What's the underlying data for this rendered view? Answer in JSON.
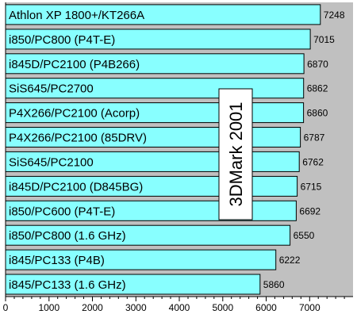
{
  "chart_data": {
    "type": "bar",
    "orientation": "horizontal",
    "categories": [
      "Athlon XP 1800+/KT266A",
      "i850/PC800 (P4T-E)",
      "i845D/PC2100 (P4B266)",
      "SiS645/PC2700",
      "P4X266/PC2100 (Acorp)",
      "P4X266/PC2100 (85DRV)",
      "SiS645/PC2100",
      "i845D/PC2100 (D845BG)",
      "i850/PC600 (P4T-E)",
      "i850/PC800 (1.6 GHz)",
      "i845/PC133 (P4B)",
      "i845/PC133 (1.6 GHz)"
    ],
    "values": [
      7248,
      7015,
      6870,
      6862,
      6860,
      6787,
      6762,
      6715,
      6692,
      6550,
      6222,
      5860
    ],
    "value_labels": [
      "7248",
      "7015",
      "6870",
      "6862",
      "6860",
      "6787",
      "6762",
      "6715",
      "6692",
      "6550",
      "6222",
      "5860"
    ],
    "xlim": [
      0,
      8000
    ],
    "xticks": [
      "0",
      "1000",
      "2000",
      "3000",
      "4000",
      "5000",
      "6000",
      "7000"
    ],
    "annotation": "3DMark 2001",
    "title": "",
    "xlabel": "",
    "ylabel": "",
    "grid": false,
    "colors": {
      "bar": "#88ffff",
      "plot_background": "#c0c0c0",
      "axis": "#000000"
    }
  }
}
